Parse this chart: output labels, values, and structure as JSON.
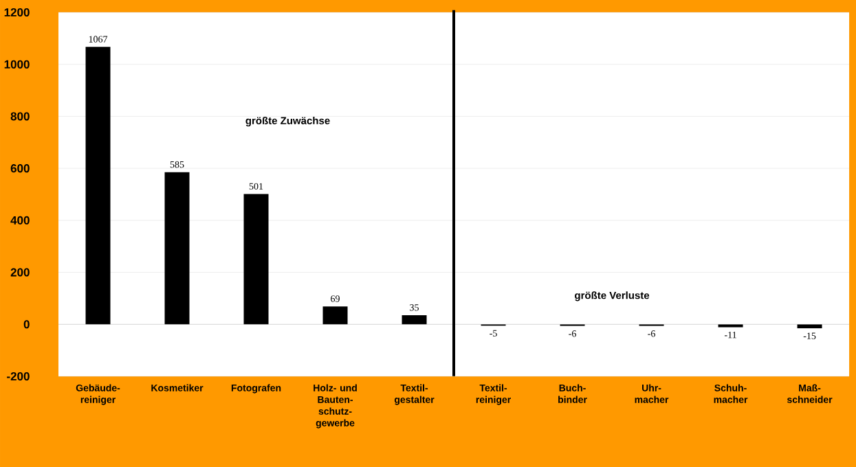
{
  "chart_data": {
    "type": "bar",
    "categories": [
      "Gebäude- reiniger",
      "Kosmetiker",
      "Fotografen",
      "Holz- und Bauten- schutz- gewerbe",
      "Textil- gestalter",
      "Textil- reiniger",
      "Buch- binder",
      "Uhr- macher",
      "Schuh- macher",
      "Maß- schneider"
    ],
    "values": [
      1067,
      585,
      501,
      69,
      35,
      -5,
      -6,
      -6,
      -11,
      -15
    ],
    "color": "#000000",
    "data_labels": true,
    "ylim": [
      -200,
      1200
    ],
    "yticks": [
      -200,
      0,
      200,
      400,
      600,
      800,
      1000,
      1200
    ],
    "grid": "y",
    "annotations": [
      "größte Zuwächse",
      "größte Verluste"
    ]
  }
}
